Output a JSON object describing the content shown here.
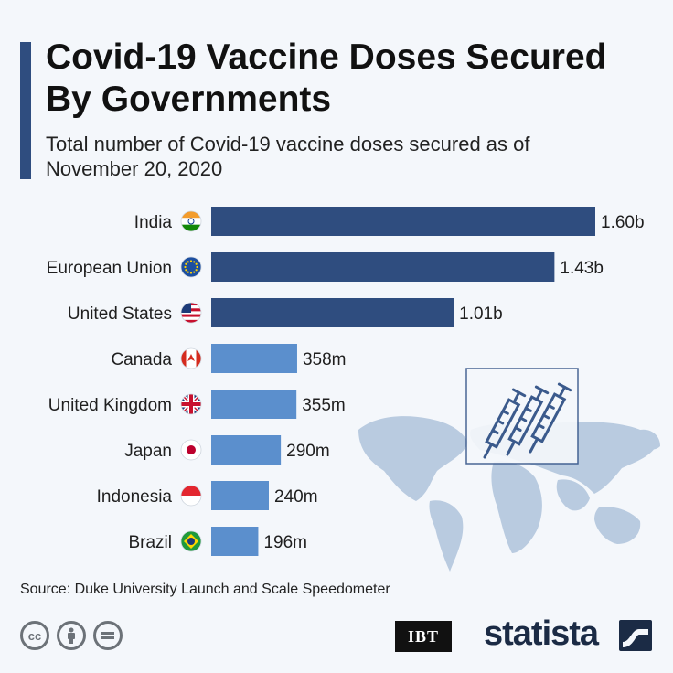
{
  "title": "Covid-19 Vaccine Doses Secured By Governments",
  "subtitle": "Total number of Covid-19 vaccine doses secured as of November 20, 2020",
  "source": "Source: Duke University Launch and Scale Speedometer",
  "logos": {
    "ibt": "IBT",
    "statista": "statista"
  },
  "colors": {
    "dark_bar": "#2f4d7f",
    "light_bar": "#5b8fcd",
    "map": "#b9cbe0",
    "accent": "#2f4d7f"
  },
  "icons": [
    "creative-commons-icon",
    "attribution-icon",
    "no-derivatives-icon",
    "syringe-icon",
    "world-map-icon"
  ],
  "chart_data": {
    "type": "bar",
    "orientation": "horizontal",
    "categories": [
      "India",
      "European Union",
      "United States",
      "Canada",
      "United Kingdom",
      "Japan",
      "Indonesia",
      "Brazil"
    ],
    "values": [
      1600,
      1430,
      1010,
      358,
      355,
      290,
      240,
      196
    ],
    "value_labels": [
      "1.60b",
      "1.43b",
      "1.01b",
      "358m",
      "355m",
      "290m",
      "240m",
      "196m"
    ],
    "unit": "million doses",
    "xlim": [
      0,
      1600
    ],
    "grid": false,
    "bar_colors": [
      "#2f4d7f",
      "#2f4d7f",
      "#2f4d7f",
      "#5b8fcd",
      "#5b8fcd",
      "#5b8fcd",
      "#5b8fcd",
      "#5b8fcd"
    ]
  }
}
